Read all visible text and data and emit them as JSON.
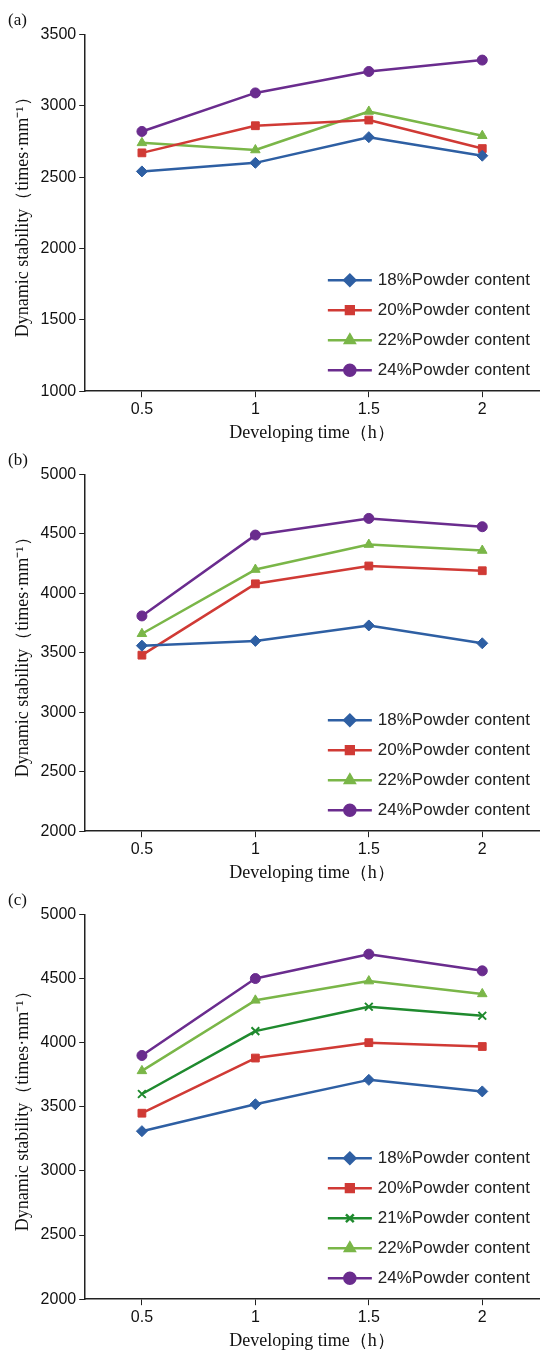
{
  "chart_data": [
    {
      "type": "line",
      "title": "(a)",
      "xlabel": "Developing time（h）",
      "ylabel": "Dynamic stability（times·mm⁻¹）",
      "x": [
        0.5,
        1,
        1.5,
        2
      ],
      "xlim": [
        0.25,
        2.25
      ],
      "xticks": [
        0.5,
        1,
        1.5,
        2
      ],
      "ylim": [
        1000,
        3500
      ],
      "yticks": [
        1000,
        1500,
        2000,
        2500,
        3000,
        3500
      ],
      "grid": false,
      "legend": "bottom right",
      "series": [
        {
          "name": "18%Powder content",
          "color": "#2e5fa3",
          "marker": "diamond",
          "values": [
            2540,
            2600,
            2780,
            2650
          ]
        },
        {
          "name": "20%Powder content",
          "color": "#d03a35",
          "marker": "square",
          "values": [
            2670,
            2860,
            2900,
            2700
          ]
        },
        {
          "name": "22%Powder content",
          "color": "#7ab648",
          "marker": "triangle",
          "values": [
            2740,
            2690,
            2960,
            2790
          ]
        },
        {
          "name": "24%Powder content",
          "color": "#6a2c8e",
          "marker": "circle",
          "values": [
            2820,
            3090,
            3240,
            3320
          ]
        }
      ]
    },
    {
      "type": "line",
      "title": "(b)",
      "xlabel": "Developing time（h）",
      "ylabel": "Dynamic stability（times·mm⁻¹）",
      "x": [
        0.5,
        1,
        1.5,
        2
      ],
      "xlim": [
        0.25,
        2.25
      ],
      "xticks": [
        0.5,
        1,
        1.5,
        2
      ],
      "ylim": [
        2000,
        5000
      ],
      "yticks": [
        2000,
        2500,
        3000,
        3500,
        4000,
        4500,
        5000
      ],
      "grid": false,
      "legend": "bottom right",
      "series": [
        {
          "name": "18%Powder content",
          "color": "#2e5fa3",
          "marker": "diamond",
          "values": [
            3560,
            3600,
            3730,
            3580
          ]
        },
        {
          "name": "20%Powder content",
          "color": "#d03a35",
          "marker": "square",
          "values": [
            3480,
            4080,
            4230,
            4190
          ]
        },
        {
          "name": "22%Powder content",
          "color": "#7ab648",
          "marker": "triangle",
          "values": [
            3660,
            4200,
            4410,
            4360
          ]
        },
        {
          "name": "24%Powder content",
          "color": "#6a2c8e",
          "marker": "circle",
          "values": [
            3810,
            4490,
            4630,
            4560
          ]
        }
      ]
    },
    {
      "type": "line",
      "title": "(c)",
      "xlabel": "Developing time（h）",
      "ylabel": "Dynamic stability（times·mm⁻¹）",
      "x": [
        0.5,
        1,
        1.5,
        2
      ],
      "xlim": [
        0.25,
        2.25
      ],
      "xticks": [
        0.5,
        1,
        1.5,
        2
      ],
      "ylim": [
        2000,
        5000
      ],
      "yticks": [
        2000,
        2500,
        3000,
        3500,
        4000,
        4500,
        5000
      ],
      "grid": false,
      "legend": "bottom right",
      "series": [
        {
          "name": "18%Powder content",
          "color": "#2e5fa3",
          "marker": "diamond",
          "values": [
            3310,
            3520,
            3710,
            3620
          ]
        },
        {
          "name": "20%Powder content",
          "color": "#d03a35",
          "marker": "square",
          "values": [
            3450,
            3880,
            4000,
            3970
          ]
        },
        {
          "name": "21%Powder content",
          "color": "#1f8a2e",
          "marker": "cross",
          "values": [
            3600,
            4090,
            4280,
            4210
          ]
        },
        {
          "name": "22%Powder content",
          "color": "#7ab648",
          "marker": "triangle",
          "values": [
            3780,
            4330,
            4480,
            4380
          ]
        },
        {
          "name": "24%Powder content",
          "color": "#6a2c8e",
          "marker": "circle",
          "values": [
            3900,
            4500,
            4690,
            4560
          ]
        }
      ]
    }
  ]
}
